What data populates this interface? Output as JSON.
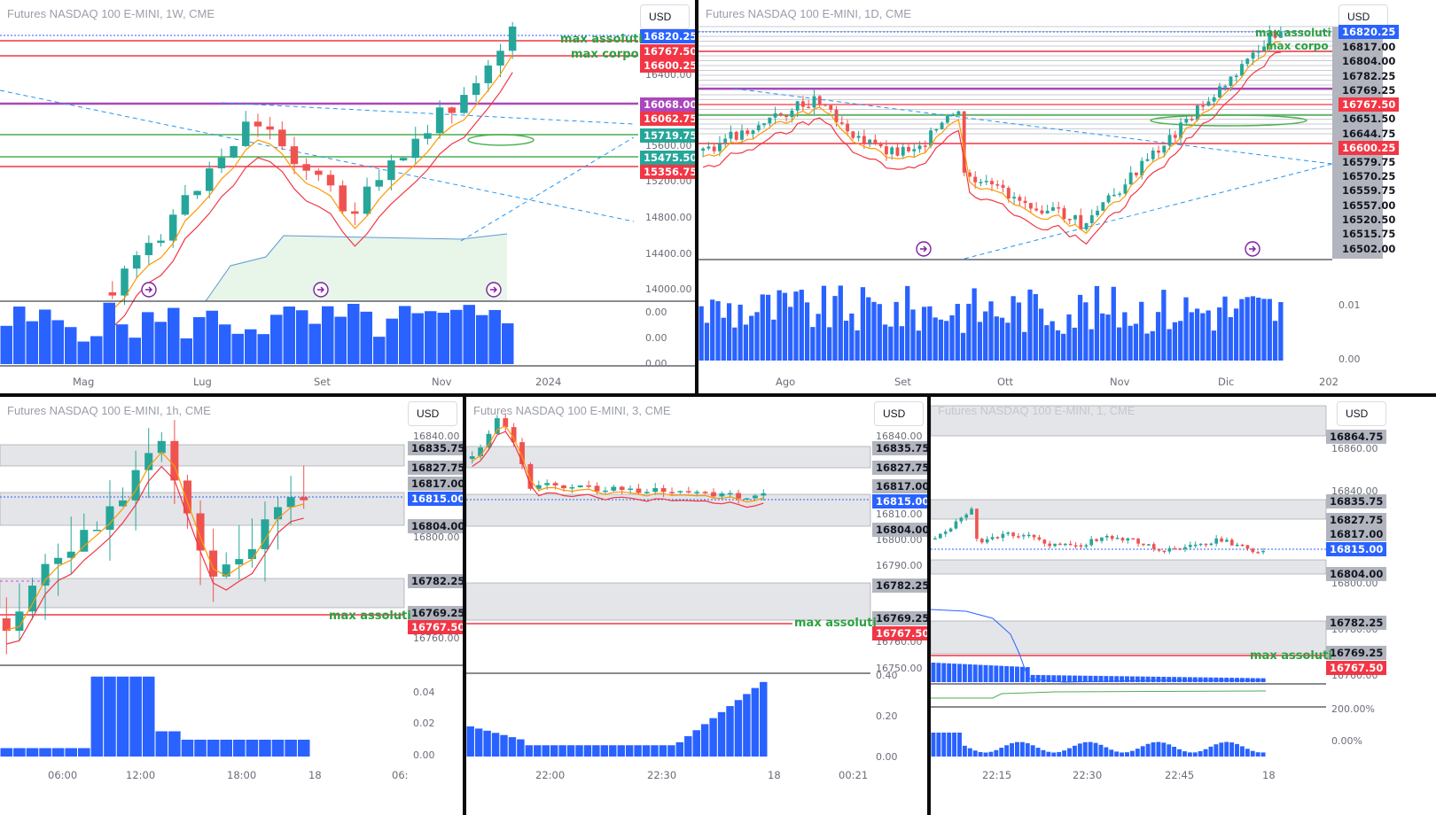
{
  "currency_label": "USD",
  "annotations": {
    "max_abs": "max assoluti",
    "max_body": "max corpo"
  },
  "panels": {
    "w1": {
      "title": "Futures NASDAQ 100 E-MINI, 1W, CME",
      "scale": [
        "16400.00",
        "15600.00",
        "15200.00",
        "14800.00",
        "14400.00",
        "14000.00"
      ],
      "vol_scale": [
        "0.00",
        "0.00",
        "0.00"
      ],
      "time": [
        "Mag",
        "Lug",
        "Set",
        "Nov",
        "2024"
      ],
      "tags": [
        {
          "text": "16820.25",
          "color": "#2962ff"
        },
        {
          "text": "16767.50",
          "color": "#f23645"
        },
        {
          "text": "16600.25",
          "color": "#f23645"
        },
        {
          "text": "16068.00",
          "color": "#ab47bc"
        },
        {
          "text": "16062.75",
          "color": "#f23645"
        },
        {
          "text": "15719.75",
          "color": "#26a69a"
        },
        {
          "text": "15475.50",
          "color": "#26a69a"
        },
        {
          "text": "15356.75",
          "color": "#f23645"
        }
      ]
    },
    "d1": {
      "title": "Futures NASDAQ 100 E-MINI, 1D, CME",
      "scale": [
        "16817.00",
        "16804.00",
        "16782.25",
        "16769.25",
        "16651.50",
        "16644.75",
        "16579.75",
        "16570.25",
        "16559.75",
        "16557.00",
        "16520.50",
        "16515.75",
        "16502.00"
      ],
      "vol_scale": [
        "0.01",
        "0.00"
      ],
      "time": [
        "Ago",
        "Set",
        "Ott",
        "Nov",
        "Dic",
        "202"
      ],
      "tags": [
        {
          "text": "16820.25",
          "color": "#2962ff"
        },
        {
          "text": "16767.50",
          "color": "#f23645"
        },
        {
          "text": "16600.25",
          "color": "#f23645"
        }
      ]
    },
    "h1": {
      "title": "Futures NASDAQ 100 E-MINI, 1h, CME",
      "scale": [
        "16840.00",
        "16800.00",
        "16760.00"
      ],
      "grey_tags": [
        "16835.75",
        "16827.75",
        "16817.00",
        "16804.00",
        "16782.25",
        "16769.25"
      ],
      "vol_scale": [
        "0.04",
        "0.02",
        "0.00"
      ],
      "time": [
        "06:00",
        "12:00",
        "18:00",
        "18",
        "06:"
      ],
      "tags": [
        {
          "text": "16815.00",
          "color": "#2962ff"
        },
        {
          "text": "16767.50",
          "color": "#f23645"
        }
      ]
    },
    "m3": {
      "title": "Futures NASDAQ 100 E-MINI, 3, CME",
      "scale": [
        "16840.00",
        "16810.00",
        "16800.00",
        "16790.00",
        "16760.00",
        "16750.00"
      ],
      "grey_tags": [
        "16835.75",
        "16827.75",
        "16817.00",
        "16804.00",
        "16782.25",
        "16769.25"
      ],
      "vol_scale": [
        "0.40",
        "0.20",
        "0.00"
      ],
      "time": [
        "22:00",
        "22:30",
        "18",
        "00:21"
      ],
      "tags": [
        {
          "text": "16815.00",
          "color": "#2962ff"
        },
        {
          "text": "16767.50",
          "color": "#f23645"
        }
      ]
    },
    "m1": {
      "title": "Futures NASDAQ 100 E-MINI, 1, CME",
      "scale": [
        "16860.00",
        "16840.00",
        "16800.00",
        "16780.00",
        "16760.00"
      ],
      "grey_tags": [
        "16864.75",
        "16835.75",
        "16827.75",
        "16817.00",
        "16804.00",
        "16782.25",
        "16769.25"
      ],
      "vol_scale": [
        "200.00%",
        "0.00%"
      ],
      "time": [
        "22:15",
        "22:30",
        "22:45",
        "18"
      ],
      "tags": [
        {
          "text": "16815.00",
          "color": "#2962ff"
        },
        {
          "text": "16767.50",
          "color": "#f23645"
        }
      ]
    }
  }
}
